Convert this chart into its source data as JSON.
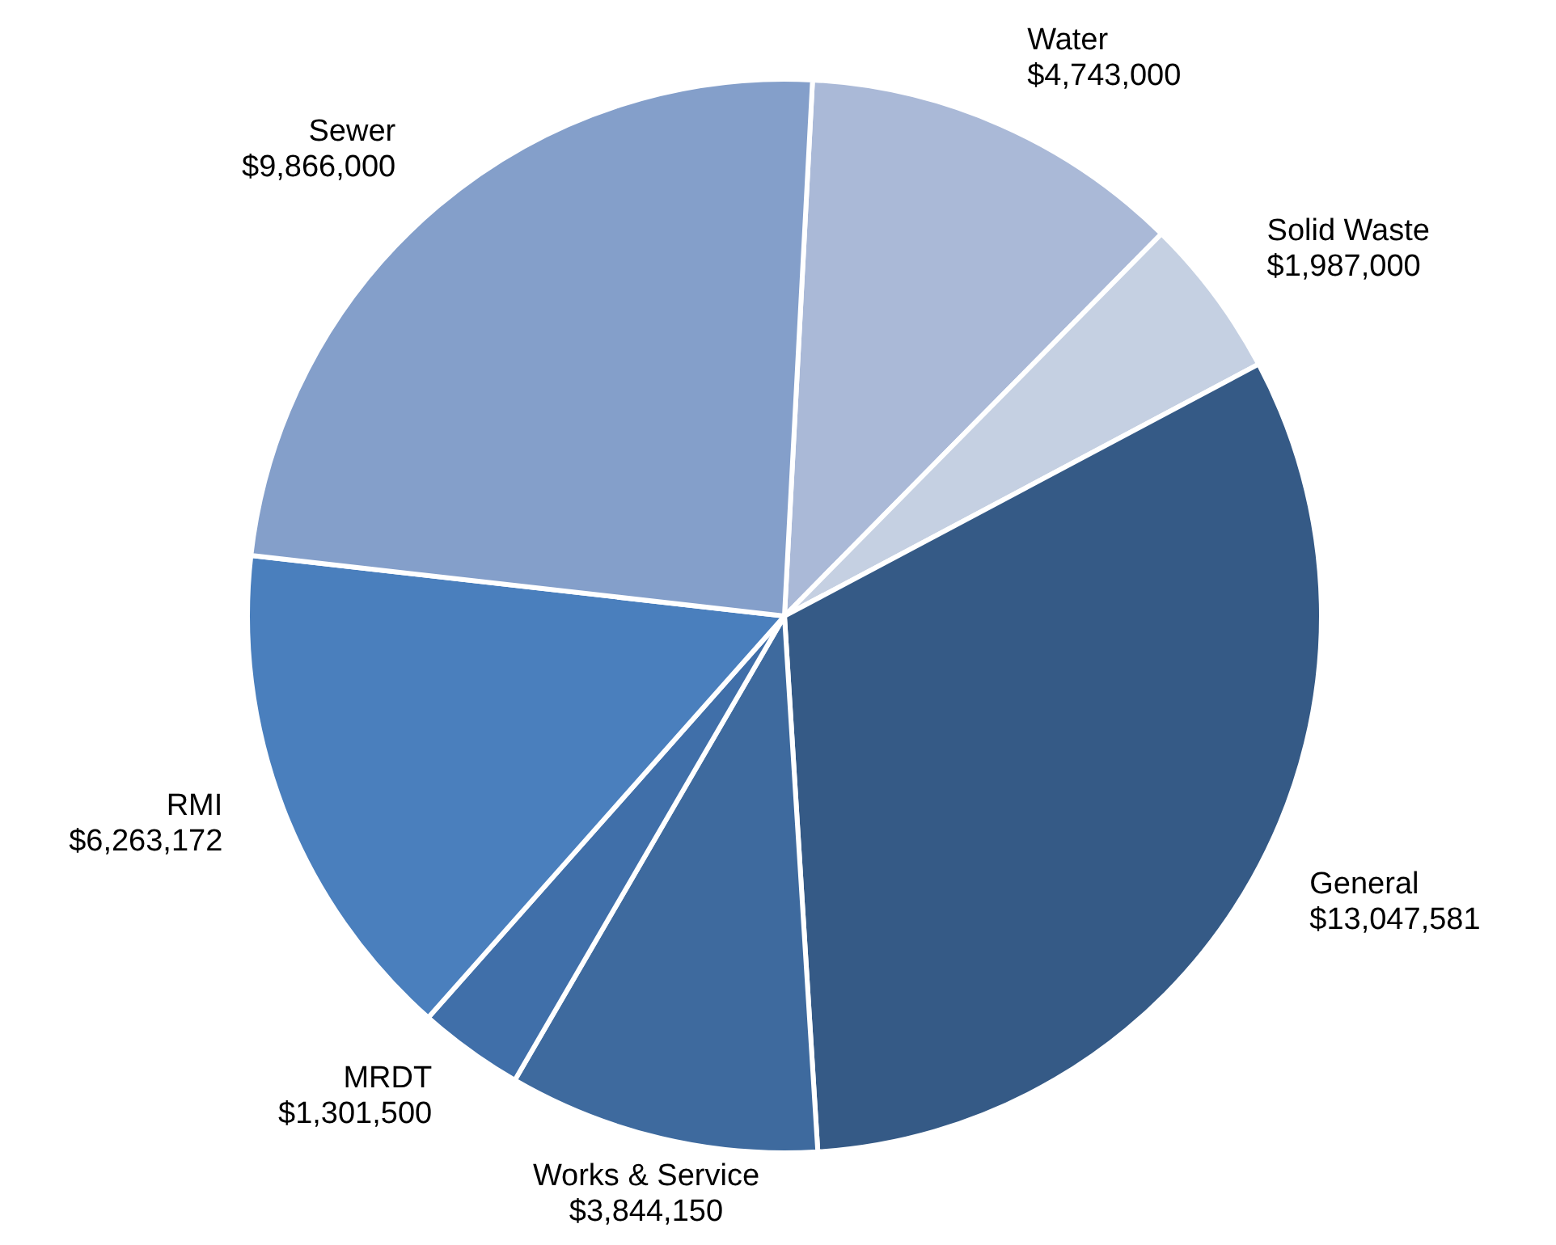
{
  "chart_data": {
    "type": "pie",
    "categories": [
      "Water",
      "Solid Waste",
      "General",
      "Works & Service",
      "MRDT",
      "RMI",
      "Sewer"
    ],
    "values": [
      4743000,
      1987000,
      13047581,
      3844150,
      1301500,
      6263172,
      9866000
    ],
    "value_labels": [
      "$4,743,000",
      "$1,987,000",
      "$13,047,581",
      "$3,844,150",
      "$1,301,500",
      "$6,263,172",
      "$9,866,000"
    ],
    "colors": [
      "#aab9d7",
      "#c5d0e2",
      "#355a86",
      "#3e6a9e",
      "#406fa9",
      "#4a7fbd",
      "#849fca"
    ],
    "legend": false
  }
}
